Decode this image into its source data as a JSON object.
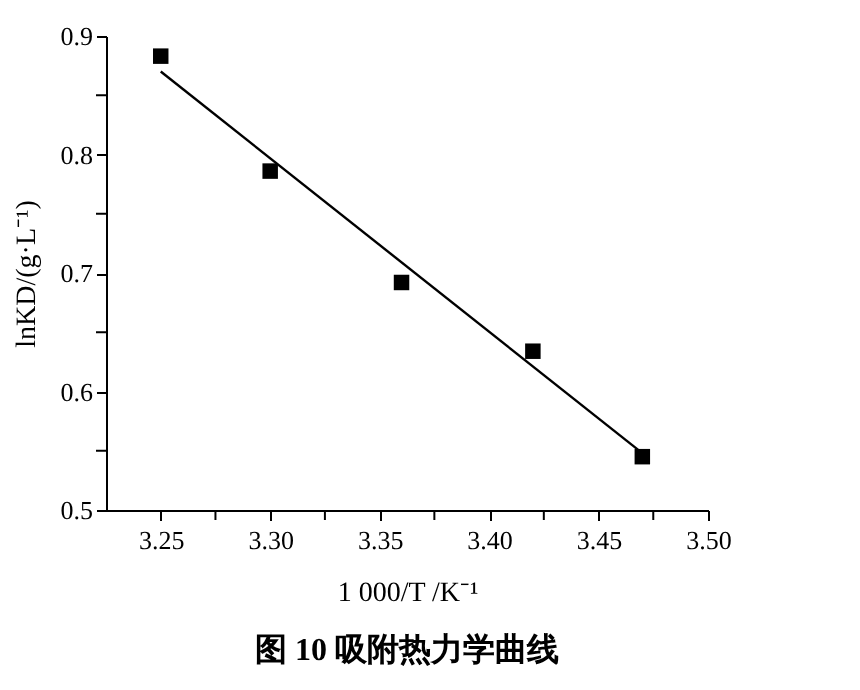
{
  "chart_data": {
    "type": "scatter",
    "xlabel": "1 000/T /K⁻¹",
    "ylabel": "lnKD/(g·L⁻¹)",
    "annotations": [
      "图 10   吸附热力学曲线"
    ],
    "x": [
      3.25,
      3.3,
      3.36,
      3.42,
      3.47
    ],
    "series": [
      {
        "color": "#000000",
        "marker": "square",
        "values": [
          0.883,
          0.786,
          0.692,
          0.634,
          0.545
        ]
      },
      {
        "type": "line",
        "color": "#000000",
        "line_style": "solid",
        "x": [
          3.25,
          3.47
        ],
        "values": [
          0.87,
          0.548
        ]
      }
    ],
    "xlim": [
      3.225,
      3.5
    ],
    "ylim": [
      0.5,
      0.9
    ],
    "xticks": [
      {
        "value": 3.25,
        "label": "3.25"
      },
      {
        "value": 3.275,
        "label": null
      },
      {
        "value": 3.3,
        "label": "3.30"
      },
      {
        "value": 3.325,
        "label": null
      },
      {
        "value": 3.35,
        "label": "3.35"
      },
      {
        "value": 3.375,
        "label": null
      },
      {
        "value": 3.4,
        "label": "3.40"
      },
      {
        "value": 3.425,
        "label": null
      },
      {
        "value": 3.45,
        "label": "3.45"
      },
      {
        "value": 3.475,
        "label": null
      },
      {
        "value": 3.5,
        "label": "3.50"
      }
    ],
    "yticks": [
      0.5,
      {
        "value": 0.55,
        "label": null
      },
      0.6,
      {
        "value": 0.65,
        "label": null
      },
      0.7,
      {
        "value": 0.75,
        "label": null
      },
      0.8,
      {
        "value": 0.85,
        "label": null
      },
      0.9
    ],
    "grid": false
  }
}
